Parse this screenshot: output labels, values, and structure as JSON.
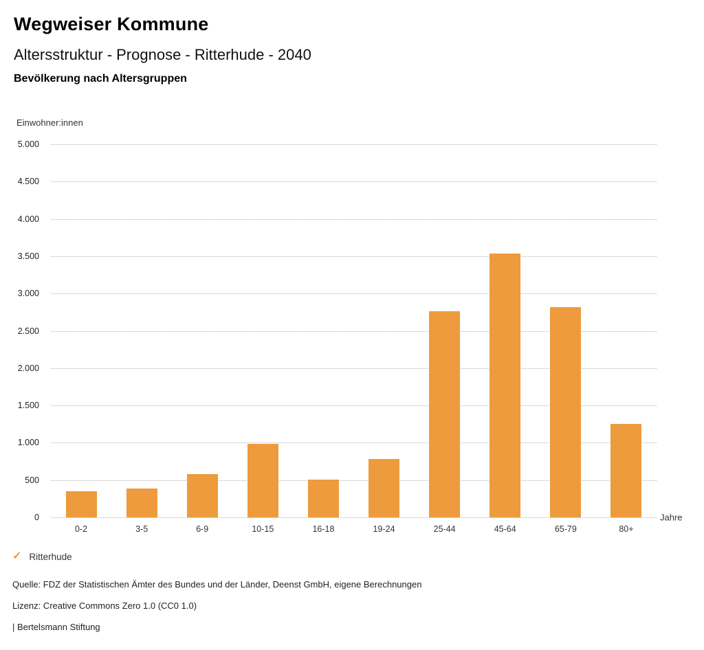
{
  "header": {
    "title": "Wegweiser Kommune",
    "subtitle": "Altersstruktur - Prognose - Ritterhude - 2040",
    "chart_heading": "Bevölkerung nach Altersgruppen"
  },
  "chart_data": {
    "type": "bar",
    "title": "Bevölkerung nach Altersgruppen",
    "ylabel": "Einwohner:innen",
    "xlabel": "Jahre",
    "categories": [
      "0-2",
      "3-5",
      "6-9",
      "10-15",
      "16-18",
      "19-24",
      "25-44",
      "45-64",
      "65-79",
      "80+"
    ],
    "values": [
      350,
      390,
      580,
      985,
      510,
      780,
      2760,
      3540,
      2820,
      1250
    ],
    "series": [
      {
        "name": "Ritterhude",
        "values": [
          350,
          390,
          580,
          985,
          510,
          780,
          2760,
          3540,
          2820,
          1250
        ]
      }
    ],
    "ylim": [
      0,
      5000
    ],
    "ytick_step": 500,
    "ytick_labels": [
      "0",
      "500",
      "1.000",
      "1.500",
      "2.000",
      "2.500",
      "3.000",
      "3.500",
      "4.000",
      "4.500",
      "5.000"
    ],
    "grid": "horizontal-dotted",
    "legend_position": "bottom-left",
    "bar_color": "#ED9B3C"
  },
  "legend": {
    "check_icon": "✓",
    "label": "Ritterhude"
  },
  "footer": {
    "source": "Quelle: FDZ der Statistischen Ämter des Bundes und der Länder, Deenst GmbH, eigene Berechnungen",
    "license": "Lizenz: Creative Commons Zero 1.0 (CC0 1.0)",
    "publisher": "| Bertelsmann Stiftung"
  },
  "colors": {
    "accent_orange": "#ED9B3C",
    "gridline": "#b5b5b5",
    "text": "#1a1a1a"
  }
}
